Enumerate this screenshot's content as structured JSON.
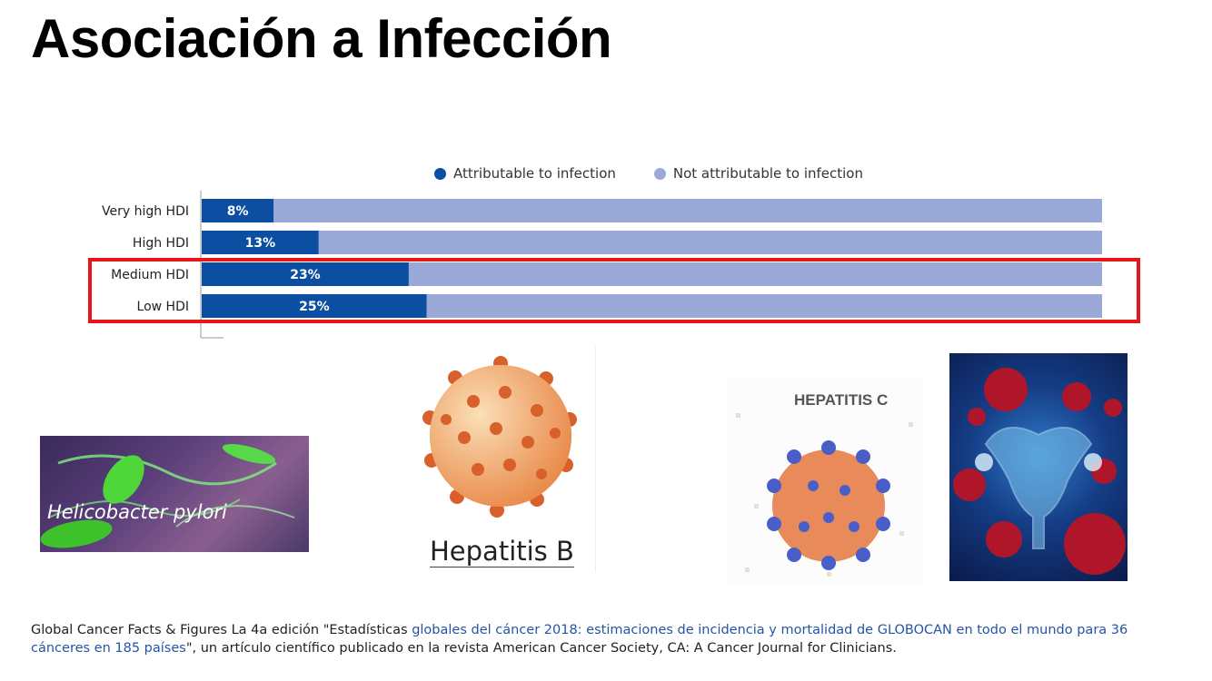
{
  "title": "Asociación a Infección",
  "chart_data": {
    "type": "bar",
    "orientation": "horizontal",
    "stacked": true,
    "categories": [
      "Very high HDI",
      "High HDI",
      "Medium HDI",
      "Low HDI"
    ],
    "series": [
      {
        "name": "Attributable to infection",
        "values": [
          8,
          13,
          23,
          25
        ],
        "color": "#0b4ea2"
      },
      {
        "name": "Not attributable to infection",
        "values": [
          92,
          87,
          77,
          75
        ],
        "color": "#9aa9d8"
      }
    ],
    "value_labels": [
      "8%",
      "13%",
      "23%",
      "25%"
    ],
    "xlim": [
      0,
      100
    ],
    "legend_position": "top",
    "highlighted_categories": [
      "Medium HDI",
      "Low HDI"
    ],
    "highlight_color": "#e8151b"
  },
  "images": {
    "h_pylori": {
      "caption": "Helicobacter pylori"
    },
    "hep_b": {
      "caption": "Hepatitis B"
    },
    "hep_c": {
      "caption": "HEPATITIS C"
    }
  },
  "footer": {
    "prefix": "Global Cancer Facts & Figures La 4a  edición \"Estadísticas ",
    "link": "globales del cáncer 2018: estimaciones de incidencia y mortalidad de GLOBOCAN en todo el mundo para 36 cánceres en 185 países",
    "suffix": "\", un artículo científico publicado en la revista American Cancer Society, CA: A Cancer Journal for Clinicians."
  }
}
